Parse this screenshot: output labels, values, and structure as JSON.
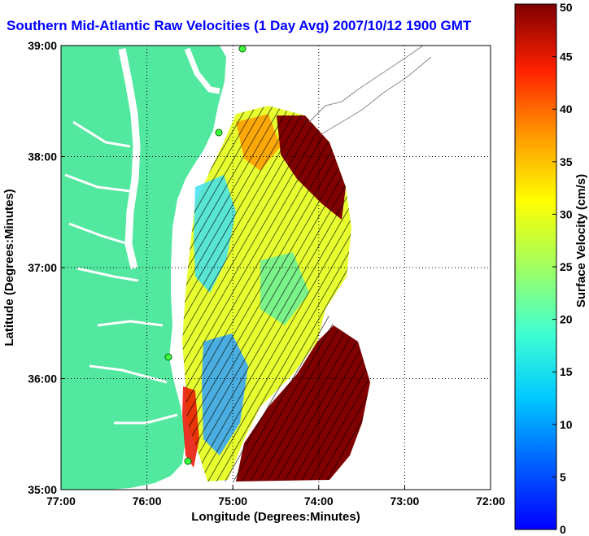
{
  "title": "Southern Mid-Atlantic Raw Velocities (1 Day Avg) 2007/10/12 1900 GMT",
  "chart_data": {
    "type": "heatmap",
    "subtype": "vector field over map",
    "xlabel": "Longitude (Degrees:Minutes)",
    "ylabel": "Latitude (Degrees:Minutes)",
    "colorbar_label": "Surface Velocity (cm/s)",
    "x_ticks": [
      "77:00",
      "76:00",
      "75:00",
      "74:00",
      "73:00",
      "72:00"
    ],
    "y_ticks": [
      "39:00",
      "38:00",
      "37:00",
      "36:00",
      "35:00"
    ],
    "colorbar_ticks": [
      "0",
      "5",
      "10",
      "15",
      "20",
      "25",
      "30",
      "35",
      "40",
      "45",
      "50"
    ],
    "xlim": [
      -77,
      -72
    ],
    "ylim": [
      35,
      39
    ],
    "clim": [
      0,
      50
    ],
    "grid": true,
    "colormap": "jet",
    "land_color": "#52e8a0"
  }
}
